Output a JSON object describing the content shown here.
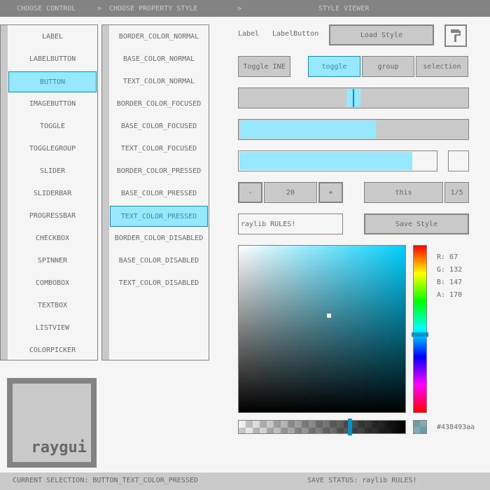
{
  "header": {
    "col1": "CHOOSE CONTROL",
    "sep1": ">",
    "col2": "CHOOSE PROPERTY STYLE",
    "sep2": ">",
    "col3": "STYLE VIEWER"
  },
  "controls": [
    "LABEL",
    "LABELBUTTON",
    "BUTTON",
    "IMAGEBUTTON",
    "TOGGLE",
    "TOGGLEGROUP",
    "SLIDER",
    "SLIDERBAR",
    "PROGRESSBAR",
    "CHECKBOX",
    "SPINNER",
    "COMBOBOX",
    "TEXTBOX",
    "LISTVIEW",
    "COLORPICKER"
  ],
  "selected_control": "BUTTON",
  "properties": [
    "BORDER_COLOR_NORMAL",
    "BASE_COLOR_NORMAL",
    "TEXT_COLOR_NORMAL",
    "BORDER_COLOR_FOCUSED",
    "BASE_COLOR_FOCUSED",
    "TEXT_COLOR_FOCUSED",
    "BORDER_COLOR_PRESSED",
    "BASE_COLOR_PRESSED",
    "TEXT_COLOR_PRESSED",
    "BORDER_COLOR_DISABLED",
    "BASE_COLOR_DISABLED",
    "TEXT_COLOR_DISABLED"
  ],
  "selected_property": "TEXT_COLOR_PRESSED",
  "viewer": {
    "label": "Label",
    "label_button": "LabelButton",
    "load_style": "Load Style",
    "icon": "paint-roller-icon",
    "toggle": "Toggle INE",
    "toggle_group": [
      "toggle",
      "group",
      "selection"
    ],
    "toggle_group_active": 0,
    "slider_value": 0.5,
    "sliderbar_value": 0.6,
    "progress_value": 0.88,
    "checkbox_checked": false,
    "spinner": {
      "minus": "-",
      "value": "20",
      "plus": "+"
    },
    "combobox": {
      "value": "this",
      "counter": "1/5"
    },
    "textbox": "raylib RULES!",
    "save_style": "Save Style",
    "color": {
      "r": "R: 67",
      "g": "G: 132",
      "b": "B: 147",
      "a": "A: 170",
      "hex": "#438493aa",
      "alpha_value": 0.67
    }
  },
  "logo": "raygui",
  "status": {
    "selection": "CURRENT SELECTION: BUTTON_TEXT_COLOR_PRESSED",
    "save": "SAVE STATUS: raylib RULES!"
  },
  "colors": {
    "bg": "#f5f5f5",
    "border": "#838383",
    "base": "#c9c9c9",
    "text": "#686868",
    "accent_bg": "#97e8ff",
    "accent_border": "#0492c7"
  }
}
